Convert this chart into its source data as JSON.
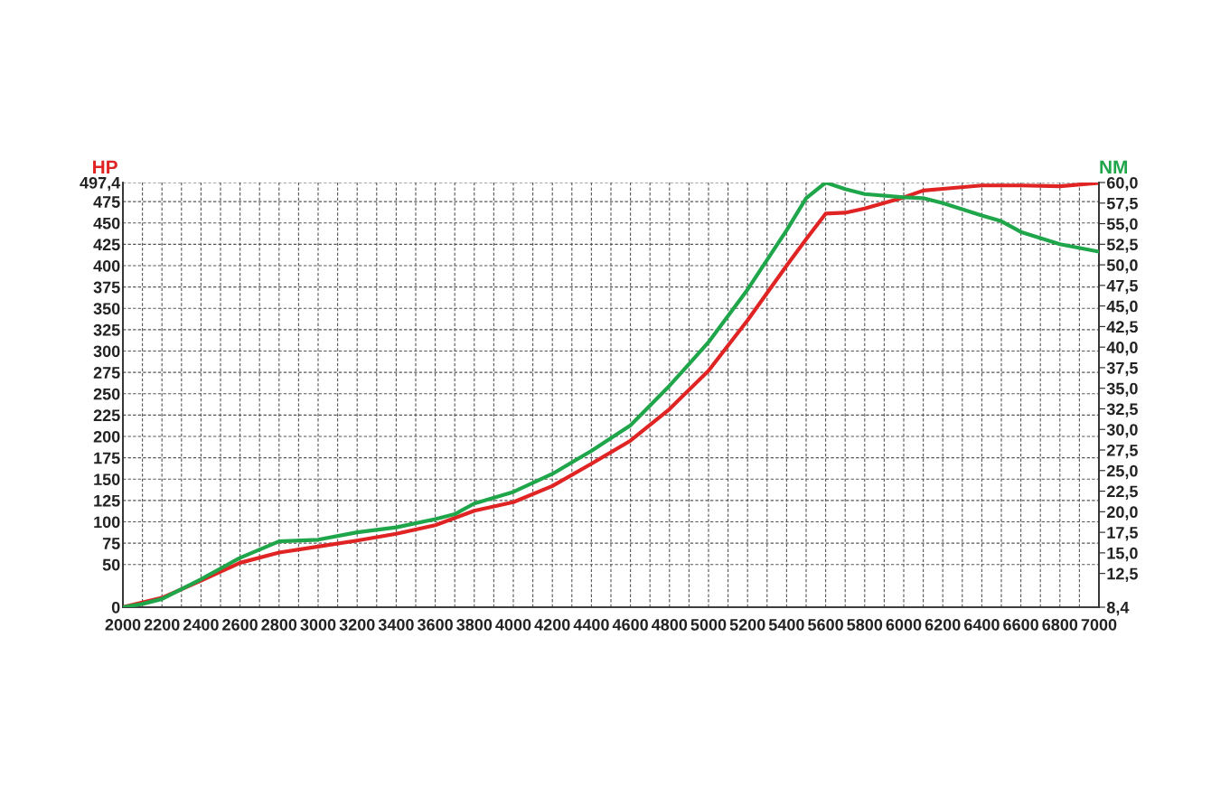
{
  "chart_data": {
    "type": "line",
    "ylabel": "HP",
    "y2label": "NM",
    "grid": true,
    "line_style": "solid",
    "marker": "none",
    "xlim": [
      2000,
      7000
    ],
    "xticks": [
      2000,
      {
        "value": 2100,
        "label": null
      },
      2200,
      {
        "value": 2300,
        "label": null
      },
      2400,
      {
        "value": 2500,
        "label": null
      },
      2600,
      {
        "value": 2700,
        "label": null
      },
      2800,
      {
        "value": 2900,
        "label": null
      },
      3000,
      {
        "value": 3100,
        "label": null
      },
      3200,
      {
        "value": 3300,
        "label": null
      },
      3400,
      {
        "value": 3500,
        "label": null
      },
      3600,
      {
        "value": 3700,
        "label": null
      },
      3800,
      {
        "value": 3900,
        "label": null
      },
      4000,
      {
        "value": 4100,
        "label": null
      },
      4200,
      {
        "value": 4300,
        "label": null
      },
      4400,
      {
        "value": 4500,
        "label": null
      },
      4600,
      {
        "value": 4700,
        "label": null
      },
      4800,
      {
        "value": 4900,
        "label": null
      },
      5000,
      {
        "value": 5100,
        "label": null
      },
      5200,
      {
        "value": 5300,
        "label": null
      },
      5400,
      {
        "value": 5500,
        "label": null
      },
      5600,
      {
        "value": 5700,
        "label": null
      },
      5800,
      {
        "value": 5900,
        "label": null
      },
      6000,
      {
        "value": 6100,
        "label": null
      },
      6200,
      {
        "value": 6300,
        "label": null
      },
      6400,
      {
        "value": 6500,
        "label": null
      },
      6600,
      {
        "value": 6700,
        "label": null
      },
      6800,
      {
        "value": 6900,
        "label": null
      },
      7000
    ],
    "ylim": [
      0,
      497.4
    ],
    "yticks": [
      0,
      50,
      75,
      100,
      125,
      150,
      175,
      200,
      225,
      250,
      275,
      300,
      325,
      350,
      375,
      400,
      425,
      450,
      475,
      {
        "value": 497.4,
        "label": "497,4"
      }
    ],
    "y2lim": [
      8.4,
      60.0
    ],
    "y2ticks": [
      {
        "value": 8.4,
        "label": "8,4"
      },
      {
        "value": 12.5,
        "label": "12,5"
      },
      {
        "value": 15.0,
        "label": "15,0"
      },
      {
        "value": 17.5,
        "label": "17,5"
      },
      {
        "value": 20.0,
        "label": "20,0"
      },
      {
        "value": 22.5,
        "label": "22,5"
      },
      {
        "value": 25.0,
        "label": "25,0"
      },
      {
        "value": 27.5,
        "label": "27,5"
      },
      {
        "value": 30.0,
        "label": "30,0"
      },
      {
        "value": 32.5,
        "label": "32,5"
      },
      {
        "value": 35.0,
        "label": "35,0"
      },
      {
        "value": 37.5,
        "label": "37,5"
      },
      {
        "value": 40.0,
        "label": "40,0"
      },
      {
        "value": 42.5,
        "label": "42,5"
      },
      {
        "value": 45.0,
        "label": "45,0"
      },
      {
        "value": 47.5,
        "label": "47,5"
      },
      {
        "value": 50.0,
        "label": "50,0"
      },
      {
        "value": 52.5,
        "label": "52,5"
      },
      {
        "value": 55.0,
        "label": "55,0"
      },
      {
        "value": 57.5,
        "label": "57,5"
      },
      {
        "value": 60.0,
        "label": "60,0"
      }
    ],
    "series": [
      {
        "color": "#e02424",
        "x": [
          2000,
          2200,
          2400,
          2600,
          2800,
          3000,
          3200,
          3400,
          3600,
          3800,
          4000,
          4200,
          4400,
          4600,
          4800,
          5000,
          5200,
          5400,
          5500,
          5600,
          5700,
          5800,
          6000,
          6100,
          6200,
          6400,
          6600,
          6800,
          7000
        ],
        "values": [
          0,
          11,
          31,
          52,
          64,
          71,
          78,
          86,
          96,
          113,
          123,
          142,
          168,
          195,
          232,
          277,
          336,
          400,
          431,
          461,
          462,
          467,
          480,
          488,
          490,
          494,
          494,
          493,
          497
        ]
      },
      {
        "axis": "y2",
        "color": "#1fa64a",
        "x": [
          2000,
          2100,
          2200,
          2400,
          2600,
          2800,
          3000,
          3200,
          3400,
          3600,
          3700,
          3800,
          4000,
          4200,
          4400,
          4600,
          4800,
          5000,
          5200,
          5400,
          5500,
          5600,
          5700,
          5800,
          6000,
          6100,
          6200,
          6400,
          6500,
          6600,
          6800,
          7000
        ],
        "values": [
          8.4,
          8.8,
          9.4,
          11.8,
          14.4,
          16.4,
          16.6,
          17.5,
          18.1,
          19.1,
          19.7,
          21.0,
          22.4,
          24.6,
          27.4,
          30.5,
          35.3,
          40.6,
          47.0,
          54.2,
          58.1,
          60.0,
          59.2,
          58.6,
          58.2,
          58.1,
          57.5,
          56.0,
          55.3,
          54.0,
          52.5,
          51.6
        ]
      }
    ]
  }
}
